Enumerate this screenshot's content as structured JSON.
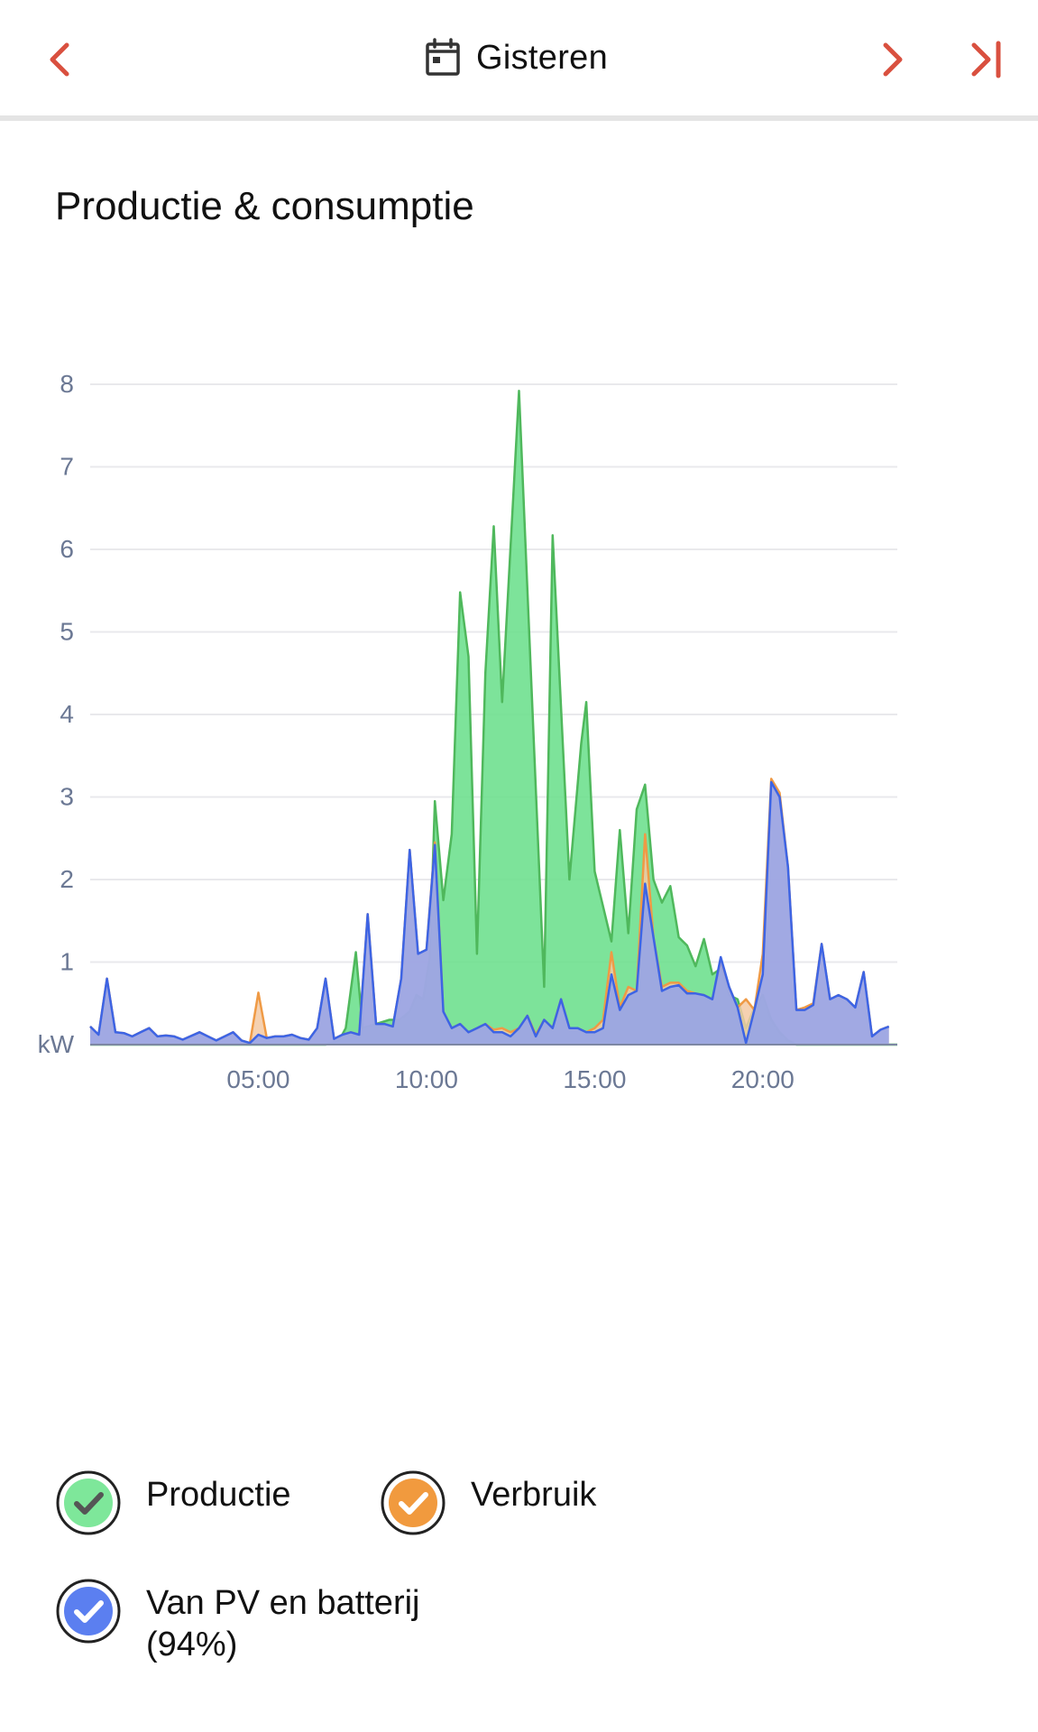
{
  "header": {
    "title": "Gisteren",
    "prev_icon": "chevron-left-icon",
    "next_icon": "chevron-right-icon",
    "last_icon": "skip-to-end-icon",
    "calendar_icon": "calendar-icon"
  },
  "section": {
    "title": "Productie & consumptie"
  },
  "colors": {
    "accent": "#d9503f",
    "productie": "#6fe08f",
    "productie_line": "#4fb85c",
    "verbruik": "#f3c9a3",
    "verbruik_line": "#ef9a45",
    "vanpv": "#8c9ff0",
    "vanpv_line": "#3d64e4",
    "grid": "#e9e9ec",
    "axis_text": "#6b7894"
  },
  "chart_data": {
    "type": "area",
    "title": "",
    "xlabel": "",
    "ylabel": "",
    "y_unit_label": "kW",
    "xlim": [
      0,
      24
    ],
    "ylim": [
      0,
      8
    ],
    "yticks": [
      1,
      2,
      3,
      4,
      5,
      6,
      7,
      8
    ],
    "xticks": [
      {
        "value": 5,
        "label": "05:00"
      },
      {
        "value": 10,
        "label": "10:00"
      },
      {
        "value": 15,
        "label": "15:00"
      },
      {
        "value": 20,
        "label": "20:00"
      }
    ],
    "grid": true,
    "series": [
      {
        "name": "Productie",
        "points": [
          [
            0,
            0
          ],
          [
            7.0,
            0
          ],
          [
            7.4,
            0.05
          ],
          [
            7.6,
            0.2
          ],
          [
            7.9,
            1.12
          ],
          [
            8.1,
            0.2
          ],
          [
            8.5,
            0.25
          ],
          [
            8.9,
            0.3
          ],
          [
            9.2,
            0.3
          ],
          [
            9.5,
            0.4
          ],
          [
            9.7,
            0.6
          ],
          [
            9.9,
            0.55
          ],
          [
            10.1,
            1.05
          ],
          [
            10.25,
            2.95
          ],
          [
            10.5,
            1.75
          ],
          [
            10.75,
            2.55
          ],
          [
            11.0,
            5.48
          ],
          [
            11.25,
            4.7
          ],
          [
            11.5,
            1.1
          ],
          [
            11.75,
            4.5
          ],
          [
            12.0,
            6.28
          ],
          [
            12.25,
            4.15
          ],
          [
            12.75,
            7.92
          ],
          [
            13.5,
            0.7
          ],
          [
            13.75,
            6.17
          ],
          [
            14.25,
            2.0
          ],
          [
            14.6,
            3.65
          ],
          [
            14.75,
            4.15
          ],
          [
            15.0,
            2.1
          ],
          [
            15.5,
            1.25
          ],
          [
            15.75,
            2.6
          ],
          [
            16.0,
            1.35
          ],
          [
            16.25,
            2.85
          ],
          [
            16.5,
            3.15
          ],
          [
            16.75,
            2.0
          ],
          [
            17.0,
            1.72
          ],
          [
            17.25,
            1.92
          ],
          [
            17.5,
            1.3
          ],
          [
            17.75,
            1.2
          ],
          [
            18.0,
            0.95
          ],
          [
            18.25,
            1.28
          ],
          [
            18.5,
            0.85
          ],
          [
            18.75,
            0.92
          ],
          [
            19.0,
            0.6
          ],
          [
            19.25,
            0.55
          ],
          [
            19.5,
            0.2
          ],
          [
            19.75,
            0.45
          ],
          [
            20.0,
            0.6
          ],
          [
            20.25,
            0.3
          ],
          [
            20.5,
            0.15
          ],
          [
            20.75,
            0.05
          ],
          [
            21.0,
            0
          ],
          [
            24,
            0
          ]
        ]
      },
      {
        "name": "Verbruik",
        "points": [
          [
            0,
            0.22
          ],
          [
            0.25,
            0.12
          ],
          [
            0.5,
            0.8
          ],
          [
            0.75,
            0.15
          ],
          [
            1.0,
            0.14
          ],
          [
            1.25,
            0.1
          ],
          [
            1.5,
            0.15
          ],
          [
            1.75,
            0.2
          ],
          [
            2.0,
            0.1
          ],
          [
            2.25,
            0.11
          ],
          [
            2.5,
            0.1
          ],
          [
            2.75,
            0.06
          ],
          [
            3.25,
            0.15
          ],
          [
            3.5,
            0.1
          ],
          [
            3.75,
            0.05
          ],
          [
            4.25,
            0.15
          ],
          [
            4.5,
            0.05
          ],
          [
            4.75,
            0.02
          ],
          [
            5.0,
            0.63
          ],
          [
            5.25,
            0.08
          ],
          [
            5.5,
            0.1
          ],
          [
            5.75,
            0.1
          ],
          [
            6.0,
            0.12
          ],
          [
            6.25,
            0.08
          ],
          [
            6.5,
            0.06
          ],
          [
            6.75,
            0.2
          ],
          [
            7.0,
            0.8
          ],
          [
            7.25,
            0.07
          ],
          [
            7.5,
            0.12
          ],
          [
            7.75,
            0.15
          ],
          [
            8.0,
            0.12
          ],
          [
            8.25,
            1.58
          ],
          [
            8.5,
            0.25
          ],
          [
            8.75,
            0.25
          ],
          [
            9.0,
            0.22
          ],
          [
            9.25,
            0.8
          ],
          [
            9.5,
            2.36
          ],
          [
            9.75,
            1.1
          ],
          [
            10.0,
            1.15
          ],
          [
            10.25,
            2.45
          ],
          [
            10.5,
            0.4
          ],
          [
            10.75,
            0.2
          ],
          [
            11.0,
            0.25
          ],
          [
            11.25,
            0.15
          ],
          [
            11.5,
            0.2
          ],
          [
            11.75,
            0.25
          ],
          [
            12.0,
            0.18
          ],
          [
            12.25,
            0.2
          ],
          [
            12.5,
            0.15
          ],
          [
            12.75,
            0.2
          ],
          [
            13.0,
            0.35
          ],
          [
            13.25,
            0.12
          ],
          [
            13.5,
            0.3
          ],
          [
            13.75,
            0.2
          ],
          [
            14.0,
            0.55
          ],
          [
            14.25,
            0.2
          ],
          [
            14.5,
            0.2
          ],
          [
            14.75,
            0.15
          ],
          [
            15.0,
            0.2
          ],
          [
            15.25,
            0.3
          ],
          [
            15.5,
            1.12
          ],
          [
            15.75,
            0.45
          ],
          [
            16.0,
            0.7
          ],
          [
            16.25,
            0.65
          ],
          [
            16.5,
            2.55
          ],
          [
            16.75,
            1.3
          ],
          [
            17.0,
            0.7
          ],
          [
            17.25,
            0.75
          ],
          [
            17.5,
            0.75
          ],
          [
            17.75,
            0.65
          ],
          [
            18.0,
            0.62
          ],
          [
            18.25,
            0.6
          ],
          [
            18.5,
            0.55
          ],
          [
            18.75,
            1.0
          ],
          [
            19.0,
            0.7
          ],
          [
            19.25,
            0.45
          ],
          [
            19.5,
            0.55
          ],
          [
            19.75,
            0.42
          ],
          [
            20.0,
            1.1
          ],
          [
            20.25,
            3.22
          ],
          [
            20.5,
            3.05
          ],
          [
            20.75,
            2.15
          ],
          [
            21.0,
            0.42
          ],
          [
            21.25,
            0.45
          ],
          [
            21.5,
            0.5
          ],
          [
            21.75,
            1.22
          ],
          [
            22.0,
            0.55
          ],
          [
            22.25,
            0.6
          ],
          [
            22.5,
            0.55
          ],
          [
            22.75,
            0.45
          ],
          [
            23.0,
            0.88
          ],
          [
            23.25,
            0.1
          ],
          [
            23.5,
            0.18
          ],
          [
            23.75,
            0.22
          ]
        ]
      },
      {
        "name": "Van PV en batterij (94%)",
        "points": [
          [
            0,
            0.22
          ],
          [
            0.25,
            0.12
          ],
          [
            0.5,
            0.8
          ],
          [
            0.75,
            0.15
          ],
          [
            1.0,
            0.14
          ],
          [
            1.25,
            0.1
          ],
          [
            1.5,
            0.15
          ],
          [
            1.75,
            0.2
          ],
          [
            2.0,
            0.1
          ],
          [
            2.25,
            0.11
          ],
          [
            2.5,
            0.1
          ],
          [
            2.75,
            0.06
          ],
          [
            3.25,
            0.15
          ],
          [
            3.5,
            0.1
          ],
          [
            3.75,
            0.05
          ],
          [
            4.25,
            0.15
          ],
          [
            4.5,
            0.05
          ],
          [
            4.75,
            0.02
          ],
          [
            5.0,
            0.12
          ],
          [
            5.25,
            0.08
          ],
          [
            5.5,
            0.1
          ],
          [
            5.75,
            0.1
          ],
          [
            6.0,
            0.12
          ],
          [
            6.25,
            0.08
          ],
          [
            6.5,
            0.06
          ],
          [
            6.75,
            0.2
          ],
          [
            7.0,
            0.8
          ],
          [
            7.25,
            0.07
          ],
          [
            7.5,
            0.12
          ],
          [
            7.75,
            0.15
          ],
          [
            8.0,
            0.12
          ],
          [
            8.25,
            1.58
          ],
          [
            8.5,
            0.25
          ],
          [
            8.75,
            0.25
          ],
          [
            9.0,
            0.22
          ],
          [
            9.25,
            0.8
          ],
          [
            9.5,
            2.36
          ],
          [
            9.75,
            1.1
          ],
          [
            10.0,
            1.15
          ],
          [
            10.25,
            2.42
          ],
          [
            10.5,
            0.4
          ],
          [
            10.75,
            0.2
          ],
          [
            11.0,
            0.25
          ],
          [
            11.25,
            0.15
          ],
          [
            11.5,
            0.2
          ],
          [
            11.75,
            0.25
          ],
          [
            12.0,
            0.15
          ],
          [
            12.25,
            0.15
          ],
          [
            12.5,
            0.1
          ],
          [
            12.75,
            0.2
          ],
          [
            13.0,
            0.35
          ],
          [
            13.25,
            0.1
          ],
          [
            13.5,
            0.3
          ],
          [
            13.75,
            0.2
          ],
          [
            14.0,
            0.55
          ],
          [
            14.25,
            0.2
          ],
          [
            14.5,
            0.2
          ],
          [
            14.75,
            0.15
          ],
          [
            15.0,
            0.15
          ],
          [
            15.25,
            0.2
          ],
          [
            15.5,
            0.85
          ],
          [
            15.75,
            0.42
          ],
          [
            16.0,
            0.6
          ],
          [
            16.25,
            0.65
          ],
          [
            16.5,
            1.95
          ],
          [
            16.75,
            1.3
          ],
          [
            17.0,
            0.65
          ],
          [
            17.25,
            0.7
          ],
          [
            17.5,
            0.72
          ],
          [
            17.75,
            0.62
          ],
          [
            18.0,
            0.62
          ],
          [
            18.25,
            0.6
          ],
          [
            18.5,
            0.55
          ],
          [
            18.75,
            1.06
          ],
          [
            19.0,
            0.7
          ],
          [
            19.25,
            0.45
          ],
          [
            19.5,
            0.02
          ],
          [
            19.75,
            0.42
          ],
          [
            20.0,
            0.85
          ],
          [
            20.25,
            3.18
          ],
          [
            20.5,
            3.0
          ],
          [
            20.75,
            2.15
          ],
          [
            21.0,
            0.42
          ],
          [
            21.25,
            0.42
          ],
          [
            21.5,
            0.48
          ],
          [
            21.75,
            1.22
          ],
          [
            22.0,
            0.55
          ],
          [
            22.25,
            0.6
          ],
          [
            22.5,
            0.55
          ],
          [
            22.75,
            0.45
          ],
          [
            23.0,
            0.88
          ],
          [
            23.25,
            0.1
          ],
          [
            23.5,
            0.18
          ],
          [
            23.75,
            0.22
          ]
        ]
      }
    ]
  },
  "legend": [
    {
      "label": "Productie",
      "color": "#7ee79a",
      "check": "checkmark-icon"
    },
    {
      "label": "Verbruik",
      "color": "#f19a3e",
      "check": "checkmark-icon"
    },
    {
      "label": "Van PV en batterij (94%)",
      "color": "#5b7ff0",
      "check": "checkmark-icon"
    }
  ]
}
